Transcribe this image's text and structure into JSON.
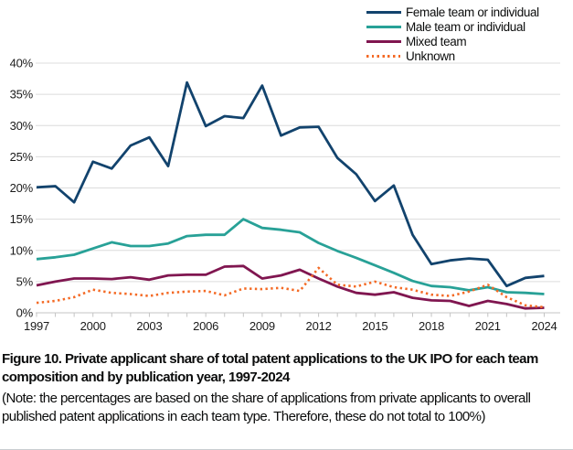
{
  "chart_data": {
    "type": "line",
    "title": "",
    "xlabel": "",
    "ylabel": "",
    "x": [
      1997,
      1998,
      1999,
      2000,
      2001,
      2002,
      2003,
      2004,
      2005,
      2006,
      2007,
      2008,
      2009,
      2010,
      2011,
      2012,
      2013,
      2014,
      2015,
      2016,
      2017,
      2018,
      2019,
      2020,
      2021,
      2022,
      2023,
      2024
    ],
    "x_tick_labels": [
      "1997",
      "2000",
      "2003",
      "2006",
      "2009",
      "2012",
      "2015",
      "2018",
      "2021",
      "2024"
    ],
    "x_tick_values": [
      1997,
      2000,
      2003,
      2006,
      2009,
      2012,
      2015,
      2018,
      2021,
      2024
    ],
    "y_tick_labels": [
      "0%",
      "5%",
      "10%",
      "15%",
      "20%",
      "25%",
      "30%",
      "35%",
      "40%"
    ],
    "y_tick_values": [
      0,
      5,
      10,
      15,
      20,
      25,
      30,
      35,
      40
    ],
    "ylim": [
      0,
      40
    ],
    "grid": "horizontal",
    "legend_position": "top-right",
    "series": [
      {
        "name": "Female team or individual",
        "color": "#12436D",
        "style": "solid",
        "values": [
          20.1,
          20.3,
          17.7,
          24.2,
          23.1,
          26.8,
          28.1,
          23.5,
          36.9,
          29.9,
          31.5,
          31.2,
          36.4,
          28.4,
          29.7,
          29.8,
          24.8,
          22.2,
          17.9,
          20.4,
          12.5,
          7.8,
          8.4,
          8.7,
          8.5,
          4.3,
          5.6,
          5.9
        ]
      },
      {
        "name": "Male team or individual",
        "color": "#28A197",
        "style": "solid",
        "values": [
          8.6,
          8.9,
          9.3,
          10.3,
          11.3,
          10.7,
          10.7,
          11.1,
          12.3,
          12.5,
          12.5,
          15.0,
          13.6,
          13.3,
          12.9,
          11.2,
          9.9,
          8.8,
          7.6,
          6.4,
          5.1,
          4.3,
          4.1,
          3.6,
          4.1,
          3.3,
          3.2,
          3.0
        ]
      },
      {
        "name": "Mixed team",
        "color": "#801650",
        "style": "solid",
        "values": [
          4.4,
          5.0,
          5.5,
          5.5,
          5.4,
          5.7,
          5.3,
          6.0,
          6.1,
          6.1,
          7.4,
          7.5,
          5.5,
          6.0,
          6.9,
          5.5,
          4.2,
          3.2,
          2.9,
          3.3,
          2.4,
          2.0,
          1.9,
          1.1,
          1.9,
          1.4,
          0.7,
          0.8
        ]
      },
      {
        "name": "Unknown",
        "color": "#F46A25",
        "style": "dotted",
        "values": [
          1.6,
          1.9,
          2.5,
          3.7,
          3.2,
          3.0,
          2.7,
          3.2,
          3.4,
          3.5,
          2.8,
          3.9,
          3.8,
          4.0,
          3.5,
          7.2,
          4.5,
          4.2,
          5.0,
          4.1,
          3.7,
          2.9,
          2.7,
          3.4,
          4.5,
          2.5,
          1.2,
          0.9
        ]
      }
    ]
  },
  "figure": {
    "caption": "Figure 10. Private applicant share of total patent applications to the UK IPO for each team composition and by publication year, 1997-2024",
    "note": "(Note: the percentages are based on the share of applications from private applicants to overall published patent applications in each team type. Therefore, these do not total to 100%)"
  },
  "colors": {
    "gridline": "#dcdcdc",
    "axis": "#c4c4c4",
    "text": "#0b0c0c"
  }
}
